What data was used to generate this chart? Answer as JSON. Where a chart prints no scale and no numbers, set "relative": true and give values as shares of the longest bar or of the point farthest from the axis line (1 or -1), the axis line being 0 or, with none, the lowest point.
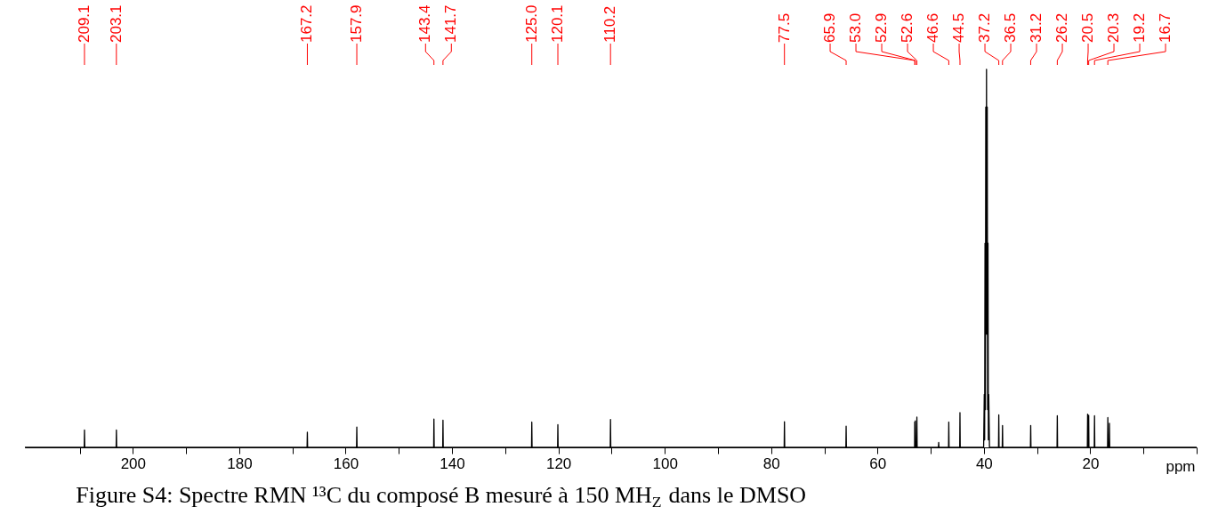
{
  "chart_data": {
    "type": "line",
    "relative": true,
    "title": "Figure S4: Spectre RMN ¹³C du composé B mesuré à 150 MH$_{Z}$ dans le DMSO",
    "xlabel": "ppm",
    "xlim": [
      220.3,
      0
    ],
    "xticks": [
      {
        "value": 210,
        "label": null
      },
      200,
      {
        "value": 190,
        "label": null
      },
      180,
      {
        "value": 170,
        "label": null
      },
      160,
      {
        "value": 150,
        "label": null
      },
      140,
      {
        "value": 130,
        "label": null
      },
      120,
      {
        "value": 110,
        "label": null
      },
      100,
      {
        "value": 90,
        "label": null
      },
      80,
      {
        "value": 70,
        "label": null
      },
      60,
      {
        "value": 50,
        "label": null
      },
      40,
      {
        "value": 30,
        "label": null
      },
      20,
      {
        "value": 10,
        "label": null
      },
      {
        "value": 0,
        "label": null
      }
    ],
    "grid": false,
    "marker": "none",
    "line_style": "solid",
    "series": [
      {
        "color": "#000000",
        "x": [
          220.3,
          209.15,
          209.1,
          209.05,
          203.15,
          203.1,
          203.05,
          167.25,
          167.2,
          167.15,
          157.95,
          157.9,
          157.85,
          143.45,
          143.4,
          143.35,
          141.75,
          141.7,
          141.65,
          125.05,
          125.0,
          124.95,
          120.15,
          120.1,
          120.05,
          110.25,
          110.2,
          110.15,
          77.55,
          77.5,
          77.45,
          65.95,
          65.9,
          65.85,
          53.03,
          53.0,
          52.95,
          52.9,
          52.85,
          52.65,
          52.6,
          52.55,
          48.55,
          48.5,
          48.45,
          46.65,
          46.6,
          46.55,
          44.55,
          44.5,
          44.45,
          40.05,
          39.93,
          39.86,
          39.79,
          39.72,
          39.65,
          39.58,
          39.51,
          39.44,
          39.37,
          39.3,
          39.23,
          39.16,
          39.09,
          38.95,
          37.25,
          37.2,
          37.15,
          36.55,
          36.5,
          36.45,
          31.25,
          31.2,
          31.15,
          26.25,
          26.2,
          26.15,
          20.55,
          20.5,
          20.45,
          20.35,
          20.3,
          20.25,
          19.25,
          19.2,
          19.15,
          16.75,
          16.7,
          16.65,
          16.45,
          16.4,
          16.35,
          0
        ],
        "values": [
          0,
          0,
          0.046,
          0,
          0,
          0.046,
          0,
          0,
          0.04,
          0,
          0,
          0.054,
          0,
          0,
          0.075,
          0,
          0,
          0.072,
          0,
          0,
          0.067,
          0,
          0,
          0.06,
          0,
          0,
          0.074,
          0,
          0,
          0.068,
          0,
          0,
          0.056,
          0,
          0,
          0.067,
          0,
          0.07,
          0,
          0,
          0.08,
          0,
          0,
          0.013,
          0,
          0,
          0.067,
          0,
          0,
          0.092,
          0,
          0,
          0.14,
          0.02,
          0.54,
          0.1,
          0.9,
          0.3,
          1.0,
          0.3,
          0.9,
          0.1,
          0.54,
          0.02,
          0.14,
          0,
          0,
          0.086,
          0,
          0,
          0.058,
          0,
          0,
          0.058,
          0,
          0,
          0.084,
          0,
          0,
          0.088,
          0,
          0,
          0.085,
          0,
          0,
          0.084,
          0,
          0,
          0.079,
          0,
          0,
          0.064,
          0,
          0
        ]
      }
    ],
    "annotations": [
      {
        "text": "209.1",
        "x": 209.1
      },
      {
        "text": "203.1",
        "x": 203.1
      },
      {
        "text": "167.2",
        "x": 167.2
      },
      {
        "text": "157.9",
        "x": 157.9
      },
      {
        "text": "143.4",
        "x": 143.4
      },
      {
        "text": "141.7",
        "x": 141.7
      },
      {
        "text": "125.0",
        "x": 125.0
      },
      {
        "text": "120.1",
        "x": 120.1
      },
      {
        "text": "110.2",
        "x": 110.2
      },
      {
        "text": "77.5",
        "x": 77.5
      },
      {
        "text": "65.9",
        "x": 65.9
      },
      {
        "text": "53.0",
        "x": 53.0
      },
      {
        "text": "52.9",
        "x": 52.9
      },
      {
        "text": "52.6",
        "x": 52.6
      },
      {
        "text": "46.6",
        "x": 46.6
      },
      {
        "text": "44.5",
        "x": 44.5
      },
      {
        "text": "37.2",
        "x": 37.2
      },
      {
        "text": "36.5",
        "x": 36.5
      },
      {
        "text": "31.2",
        "x": 31.2
      },
      {
        "text": "26.2",
        "x": 26.2
      },
      {
        "text": "20.5",
        "x": 20.5
      },
      {
        "text": "20.3",
        "x": 20.3
      },
      {
        "text": "19.2",
        "x": 19.2
      },
      {
        "text": "16.7",
        "x": 16.7
      }
    ]
  }
}
